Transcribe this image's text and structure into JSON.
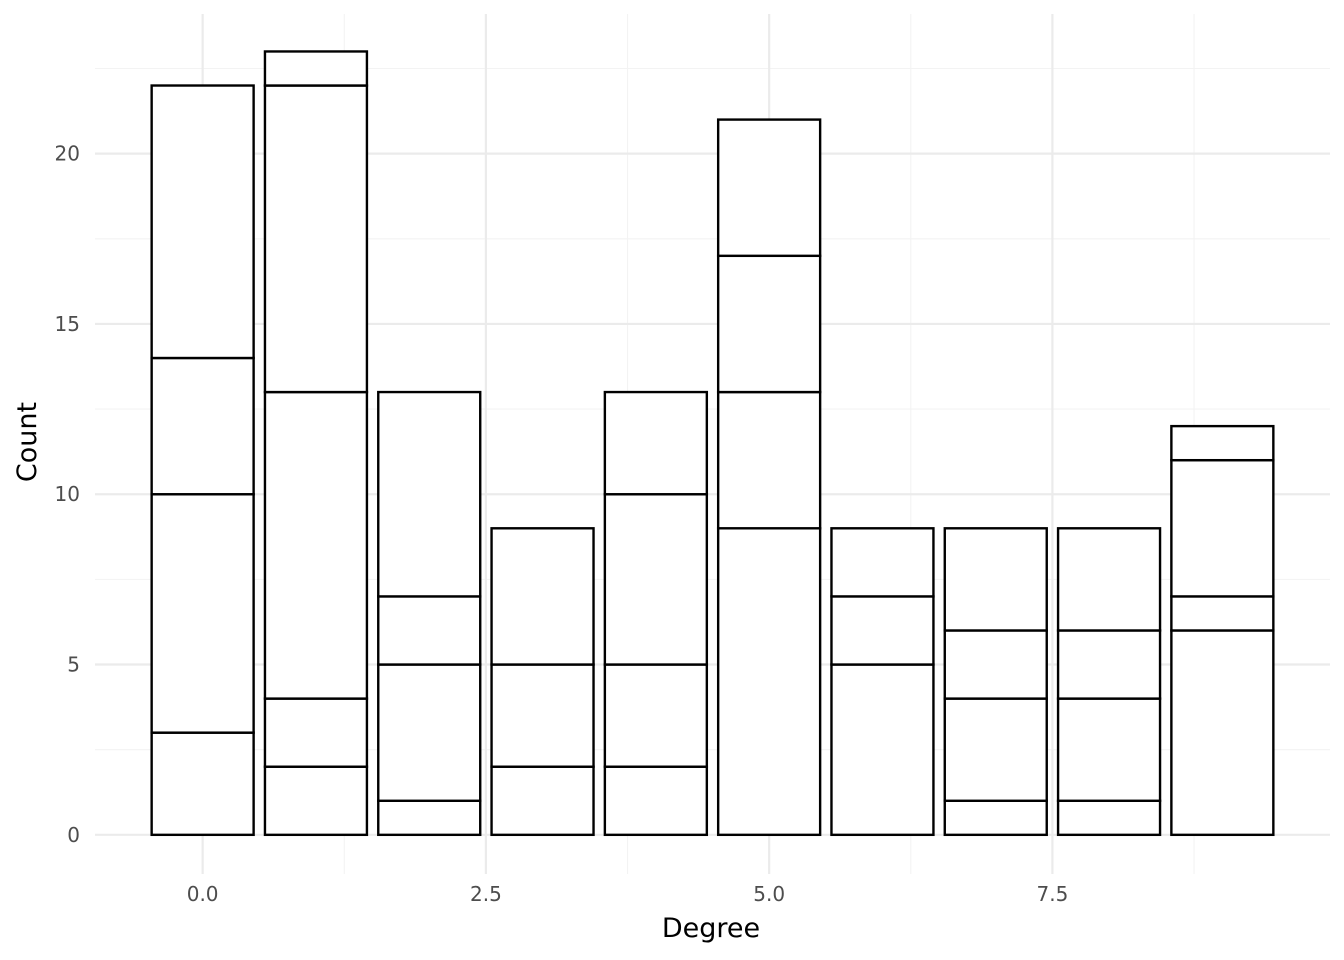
{
  "chart_data": {
    "type": "bar",
    "stacked": true,
    "xlabel": "Degree",
    "ylabel": "Count",
    "xlim": [
      -0.95,
      9.95
    ],
    "ylim": [
      -1.15,
      24.1
    ],
    "x_ticks": [
      0.0,
      2.5,
      5.0,
      7.5
    ],
    "x_tick_labels": [
      "0.0",
      "2.5",
      "5.0",
      "7.5"
    ],
    "y_ticks": [
      0,
      5,
      10,
      15,
      20
    ],
    "y_tick_labels": [
      "0",
      "5",
      "10",
      "15",
      "20"
    ],
    "grid": true,
    "bar_width": 0.9,
    "fill_color": "#ffffff",
    "stroke_color": "#000000",
    "bars": [
      {
        "x": 0,
        "stack_boundaries": [
          0,
          3,
          10,
          14,
          22
        ]
      },
      {
        "x": 1,
        "stack_boundaries": [
          0,
          2,
          4,
          13,
          22,
          23
        ]
      },
      {
        "x": 2,
        "stack_boundaries": [
          0,
          1,
          5,
          7,
          13
        ]
      },
      {
        "x": 3,
        "stack_boundaries": [
          0,
          2,
          5,
          9
        ]
      },
      {
        "x": 4,
        "stack_boundaries": [
          0,
          2,
          5,
          10,
          13
        ]
      },
      {
        "x": 5,
        "stack_boundaries": [
          0,
          9,
          13,
          17,
          21
        ]
      },
      {
        "x": 6,
        "stack_boundaries": [
          0,
          5,
          7,
          9
        ]
      },
      {
        "x": 7,
        "stack_boundaries": [
          0,
          1,
          4,
          6,
          9
        ]
      },
      {
        "x": 8,
        "stack_boundaries": [
          0,
          1,
          4,
          6,
          9
        ]
      },
      {
        "x": 9,
        "stack_boundaries": [
          0,
          6,
          7,
          11,
          12
        ]
      }
    ]
  }
}
